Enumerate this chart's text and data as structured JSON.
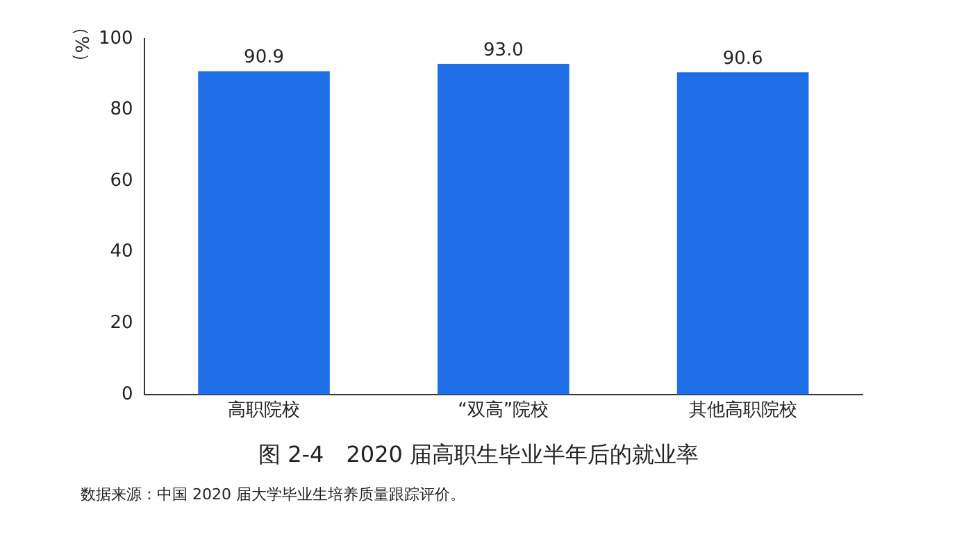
{
  "chart_data": {
    "type": "bar",
    "title": "图 2-4　2020 届高职生毕业半年后的就业率",
    "ylabel": "（%）",
    "categories": [
      "高职院校",
      "“双高”院校",
      "其他高职院校"
    ],
    "values": [
      90.9,
      93.0,
      90.6
    ],
    "color": "#1f6fe8",
    "value_labels": [
      "90.9",
      "93.0",
      "90.6"
    ],
    "ylim": [
      0,
      100
    ],
    "yticks": [
      0,
      20,
      40,
      60,
      80,
      100
    ],
    "grid": false,
    "legend": false,
    "annotations": [
      "数据来源：中国 2020 届大学毕业生培养质量跟踪评价。"
    ]
  }
}
